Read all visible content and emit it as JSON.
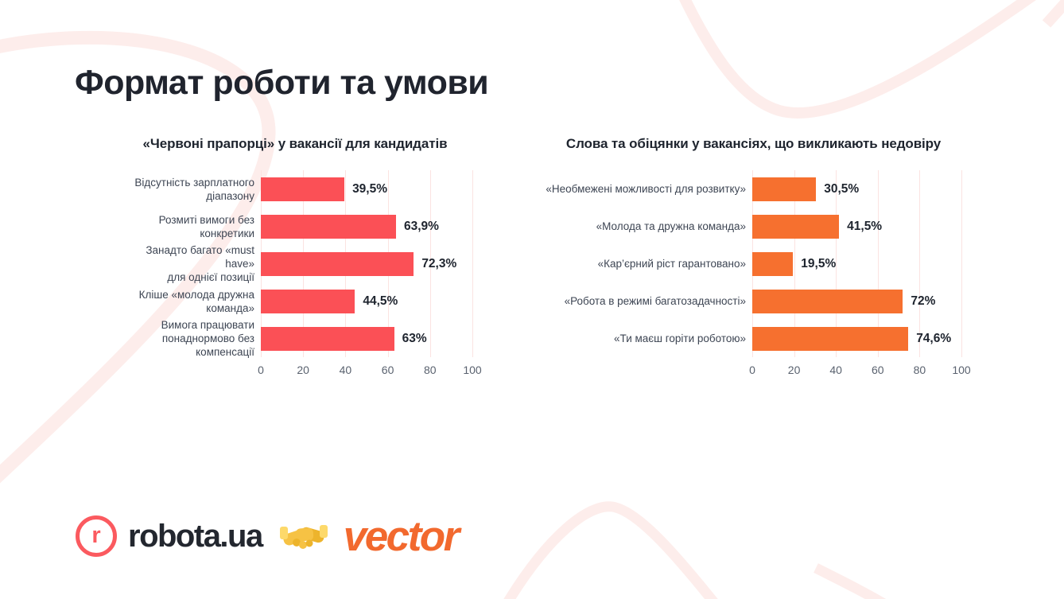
{
  "page_title": "Формат роботи та умови",
  "colors": {
    "background": "#ffffff",
    "decorative_pink": "#fdedeb",
    "gridline_pink": "#fbe3e1",
    "bar_red": "#fb5056",
    "bar_orange": "#f6702f",
    "text_dark": "#20242e",
    "label_gray": "#3d4553",
    "tick_gray": "#5a626f",
    "robota_coral": "#fb5a5f",
    "vector_orange": "#f2692e"
  },
  "chart_data": [
    {
      "type": "bar",
      "orientation": "horizontal",
      "title": "«Червоні прапорці» у вакансії для кандидатів",
      "bar_color": "#fb5056",
      "xlim": [
        0,
        100
      ],
      "xticks": [
        "0",
        "20",
        "40",
        "60",
        "80",
        "100"
      ],
      "grid": true,
      "legend": "none",
      "categories": [
        "Відсутність зарплатного діапазону",
        "Розмиті вимоги без конкретики",
        "Занадто багато «must have» для однієї позиції",
        "Кліше «молода дружна команда»",
        "Вимога працювати понаднормово без компенсації"
      ],
      "category_lines": [
        [
          "Відсутність зарплатного",
          "діапазону"
        ],
        [
          "Розмиті вимоги без конкретики"
        ],
        [
          "Занадто багато «must have»",
          "для однієї позиції"
        ],
        [
          "Кліше «молода дружна команда»"
        ],
        [
          "Вимога працювати",
          "понаднормово без компенсації"
        ]
      ],
      "values": [
        39.5,
        63.9,
        72.3,
        44.5,
        63
      ],
      "value_labels": [
        "39,5%",
        "63,9%",
        "72,3%",
        "44,5%",
        "63%"
      ]
    },
    {
      "type": "bar",
      "orientation": "horizontal",
      "title": "Слова та обіцянки у вакансіях, що викликають недовіру",
      "bar_color": "#f6702f",
      "xlim": [
        0,
        100
      ],
      "xticks": [
        "0",
        "20",
        "40",
        "60",
        "80",
        "100"
      ],
      "grid": true,
      "legend": "none",
      "categories": [
        "«Необмежені можливості для розвитку»",
        "«Молода та дружна команда»",
        "«Кар’єрний ріст гарантовано»",
        "«Робота в режимі багатозадачності»",
        "«Ти маєш горіти роботою»"
      ],
      "category_lines": [
        [
          "«Необмежені можливості для розвитку»"
        ],
        [
          "«Молода та дружна команда»"
        ],
        [
          "«Кар’єрний ріст гарантовано»"
        ],
        [
          "«Робота в режимі багатозадачності»"
        ],
        [
          "«Ти маєш горіти роботою»"
        ]
      ],
      "values": [
        30.5,
        41.5,
        19.5,
        72,
        74.6
      ],
      "value_labels": [
        "30,5%",
        "41,5%",
        "19,5%",
        "72%",
        "74,6%"
      ]
    }
  ],
  "footer": {
    "robota_logo_letter": "r",
    "robota_logo_text": "robota.ua",
    "handshake_icon_char": "🤝",
    "vector_logo_text": "vector"
  }
}
